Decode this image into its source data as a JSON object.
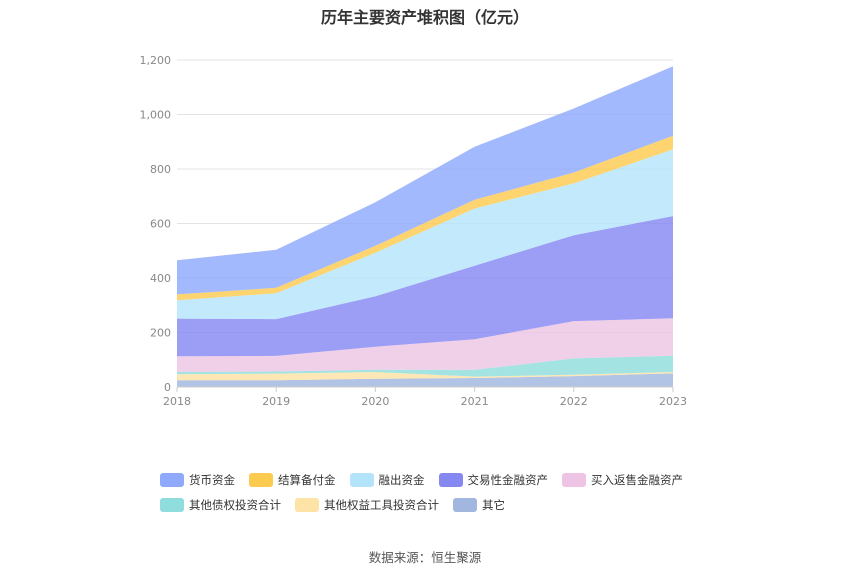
{
  "chart_data": {
    "type": "area",
    "stacked": true,
    "title": "历年主要资产堆积图（亿元）",
    "x": [
      "2018",
      "2019",
      "2020",
      "2021",
      "2022",
      "2023"
    ],
    "ylim": [
      0,
      1200
    ],
    "yticks": [
      "0",
      "200",
      "400",
      "600",
      "800",
      "1,000",
      "1,200"
    ],
    "ytick_values": [
      0,
      200,
      400,
      600,
      800,
      1000,
      1200
    ],
    "grid": true,
    "legend_position": "bottom",
    "series": [
      {
        "name": "货币资金",
        "color": "#8faafc",
        "values": [
          125,
          140,
          160,
          195,
          235,
          255
        ]
      },
      {
        "name": "结算备付金",
        "color": "#fcca4f",
        "values": [
          22,
          20,
          25,
          32,
          40,
          50
        ]
      },
      {
        "name": "融出资金",
        "color": "#b4e4fb",
        "values": [
          67,
          95,
          160,
          210,
          190,
          245
        ]
      },
      {
        "name": "交易性金融资产",
        "color": "#8688f2",
        "values": [
          138,
          135,
          185,
          270,
          315,
          375
        ]
      },
      {
        "name": "买入返售金融资产",
        "color": "#edc4e4",
        "values": [
          58,
          57,
          85,
          112,
          137,
          137
        ]
      },
      {
        "name": "其他债权投资合计",
        "color": "#8fdedd",
        "values": [
          8,
          8,
          8,
          25,
          60,
          60
        ]
      },
      {
        "name": "其他权益工具投资合计",
        "color": "#fde3a5",
        "values": [
          22,
          24,
          25,
          5,
          5,
          5
        ]
      },
      {
        "name": "其它",
        "color": "#a1b7e0",
        "values": [
          25,
          25,
          30,
          33,
          40,
          50
        ]
      }
    ]
  },
  "footer": {
    "source": "数据来源：恒生聚源"
  }
}
